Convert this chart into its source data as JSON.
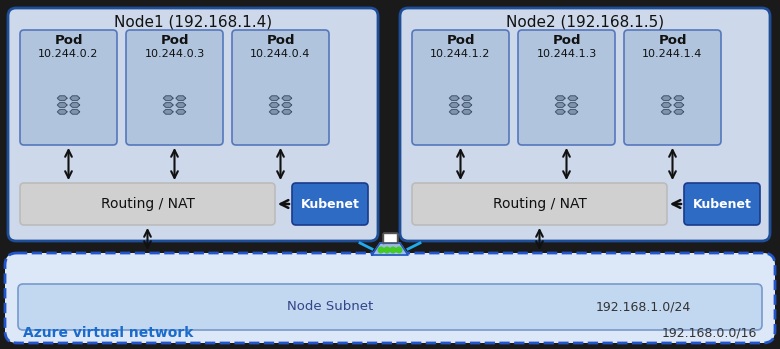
{
  "fig_width": 7.8,
  "fig_height": 3.49,
  "node1_label": "Node1 (192.168.1.4)",
  "node2_label": "Node2 (192.168.1.5)",
  "node_bg": "#cdd9ea",
  "node_border": "#1f4e98",
  "pod_bg": "#b0c4de",
  "pod_border": "#5577bb",
  "routing_bg": "#d0d0d0",
  "routing_label": "Routing / NAT",
  "kubenet_bg": "#2e6bc4",
  "kubenet_label": "Kubenet",
  "subnet_label": "Node Subnet",
  "subnet_cidr": "192.168.1.0/24",
  "vnet_label": "Azure virtual network",
  "vnet_cidr": "192.168.0.0/16",
  "vnet_bg": "#dce8f8",
  "vnet_border": "#2255cc",
  "subnet_bg": "#c2d8f0",
  "node1_pods": [
    [
      "Pod",
      "10.244.0.2"
    ],
    [
      "Pod",
      "10.244.0.3"
    ],
    [
      "Pod",
      "10.244.0.4"
    ]
  ],
  "node2_pods": [
    [
      "Pod",
      "10.244.1.2"
    ],
    [
      "Pod",
      "10.244.1.3"
    ],
    [
      "Pod",
      "10.244.1.4"
    ]
  ],
  "arrow_color": "#111111",
  "bg_color": "#1a1a1a",
  "vnet_text_color": "#1a6bcc"
}
